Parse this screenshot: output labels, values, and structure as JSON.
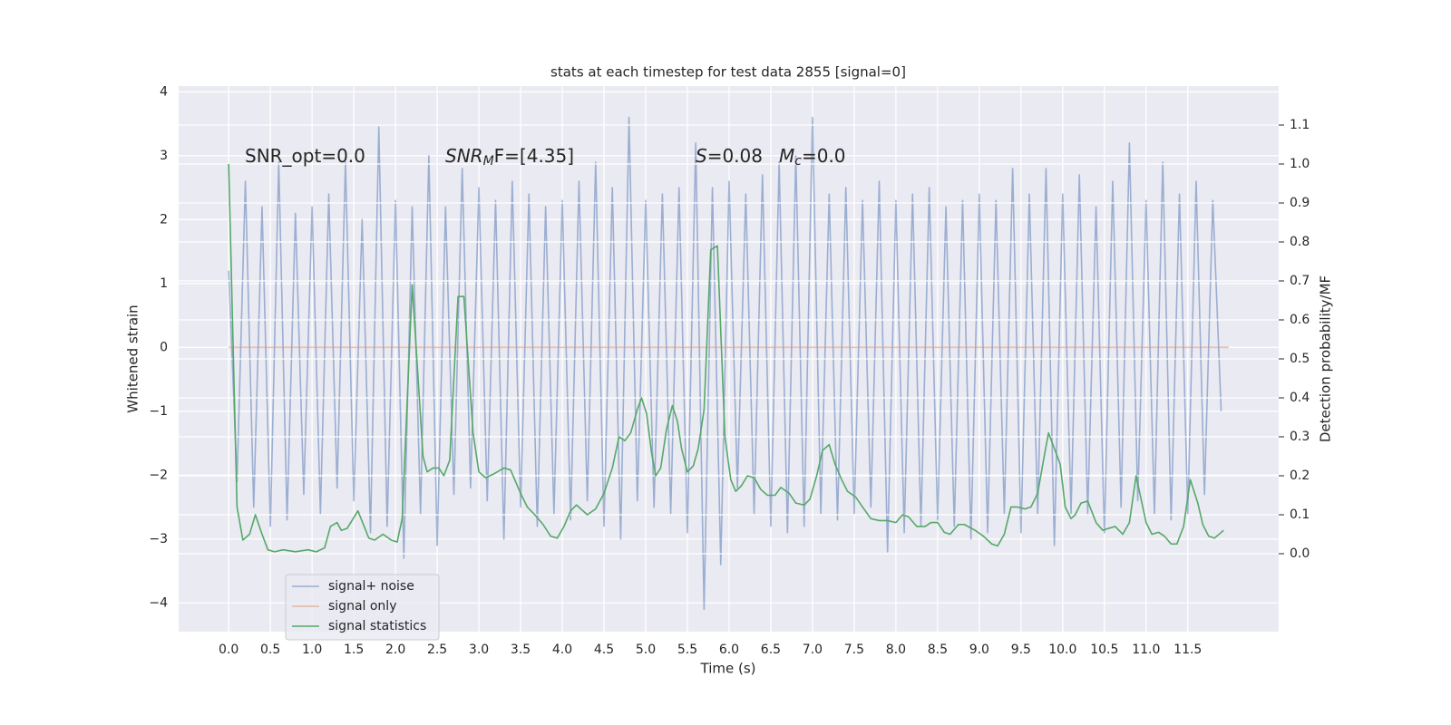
{
  "chart_data": {
    "type": "line",
    "title": "stats at each timestep for test data 2855 [signal=0]",
    "xlabel": "Time (s)",
    "ylabel": "Whitened strain",
    "y2label": "Detection probability/MF",
    "annotations": [
      {
        "text": "SNR_opt=0.0"
      },
      {
        "text": "SNR",
        "sub": "M",
        "after": "F=[4.35]",
        "italic": true
      },
      {
        "text": "S",
        "after": "=0.08",
        "italic": true
      },
      {
        "text": "M",
        "sub": "c",
        "after": "=0.0",
        "italic": true
      }
    ],
    "xlim": [
      -0.6,
      12.59
    ],
    "ylim": [
      -4.45,
      4.09
    ],
    "y2lim": [
      -0.2,
      1.2
    ],
    "xticks": [
      {
        "value": 0,
        "label": "0.0"
      },
      0.5,
      {
        "value": 1,
        "label": "1.0"
      },
      1.5,
      {
        "value": 2,
        "label": "2.0"
      },
      2.5,
      {
        "value": 3,
        "label": "3.0"
      },
      3.5,
      {
        "value": 4,
        "label": "4.0"
      },
      4.5,
      {
        "value": 5,
        "label": "5.0"
      },
      5.5,
      {
        "value": 6,
        "label": "6.0"
      },
      6.5,
      {
        "value": 7,
        "label": "7.0"
      },
      7.5,
      {
        "value": 8,
        "label": "8.0"
      },
      8.5,
      {
        "value": 9,
        "label": "9.0"
      },
      9.5,
      {
        "value": 10,
        "label": "10.0"
      },
      10.5,
      {
        "value": 11,
        "label": "11.0"
      },
      11.5
    ],
    "yticks": [
      {
        "value": -4,
        "label": "−4"
      },
      {
        "value": -3,
        "label": "−3"
      },
      {
        "value": -2,
        "label": "−2"
      },
      {
        "value": -1,
        "label": "−1"
      },
      0,
      1,
      2,
      3,
      4
    ],
    "y2ticks": [
      {
        "value": 0,
        "label": "0.0"
      },
      0.1,
      0.2,
      0.3,
      0.4,
      0.5,
      0.6,
      0.7,
      0.8,
      0.9,
      {
        "value": 1,
        "label": "1.0"
      },
      1.1
    ],
    "grid": true,
    "background": "#eaeaf2",
    "legend": "lower left",
    "series": [
      {
        "name": "signal+ noise",
        "color": "#4c72b0",
        "opacity": 0.5,
        "x": [
          0,
          0.1,
          0.2,
          0.3,
          0.4,
          0.5,
          0.6,
          0.7,
          0.8,
          0.9,
          1,
          1.1,
          1.2,
          1.3,
          1.4,
          1.5,
          1.6,
          1.7,
          1.8,
          1.9,
          2,
          2.1,
          2.2,
          2.3,
          2.4,
          2.5,
          2.6,
          2.7,
          2.8,
          2.9,
          3,
          3.1,
          3.2,
          3.3,
          3.4,
          3.5,
          3.6,
          3.7,
          3.8,
          3.9,
          4,
          4.1,
          4.2,
          4.3,
          4.4,
          4.5,
          4.6,
          4.7,
          4.8,
          4.9,
          5,
          5.1,
          5.2,
          5.3,
          5.4,
          5.5,
          5.6,
          5.7,
          5.8,
          5.9,
          6,
          6.1,
          6.2,
          6.3,
          6.4,
          6.5,
          6.6,
          6.7,
          6.8,
          6.9,
          7,
          7.1,
          7.2,
          7.3,
          7.4,
          7.5,
          7.6,
          7.7,
          7.8,
          7.9,
          8,
          8.1,
          8.2,
          8.3,
          8.4,
          8.5,
          8.6,
          8.7,
          8.8,
          8.9,
          9,
          9.1,
          9.2,
          9.3,
          9.4,
          9.5,
          9.6,
          9.7,
          9.8,
          9.9,
          10,
          10.1,
          10.2,
          10.3,
          10.4,
          10.5,
          10.6,
          10.7,
          10.8,
          10.9,
          11,
          11.1,
          11.2,
          11.3,
          11.4,
          11.5,
          11.6,
          11.7,
          11.8,
          11.9
        ],
        "values": [
          1.2,
          -2.1,
          2.6,
          -2.5,
          2.2,
          -2.8,
          2.9,
          -2.7,
          2.1,
          -2.3,
          2.2,
          -2.6,
          2.4,
          -2.2,
          2.9,
          -2.4,
          2.0,
          -2.9,
          3.45,
          -2.8,
          2.3,
          -3.3,
          2.2,
          -2.6,
          3.0,
          -3.1,
          2.2,
          -2.3,
          2.8,
          -2.2,
          2.5,
          -2.4,
          2.3,
          -3.0,
          2.6,
          -2.5,
          2.4,
          -2.8,
          2.2,
          -2.6,
          2.3,
          -2.7,
          2.6,
          -2.4,
          2.9,
          -2.8,
          2.5,
          -3.0,
          3.6,
          -2.4,
          2.3,
          -2.5,
          2.4,
          -2.6,
          2.5,
          -2.9,
          3.2,
          -4.1,
          2.5,
          -3.4,
          2.6,
          -2.2,
          2.4,
          -2.6,
          2.7,
          -2.8,
          2.9,
          -2.9,
          3.0,
          -2.8,
          3.6,
          -2.6,
          2.4,
          -2.7,
          2.5,
          -2.6,
          2.3,
          -2.5,
          2.6,
          -3.2,
          2.3,
          -2.9,
          2.4,
          -2.8,
          2.5,
          -2.7,
          2.2,
          -2.8,
          2.3,
          -3.0,
          2.4,
          -2.9,
          2.3,
          -2.6,
          2.8,
          -2.9,
          2.4,
          -2.6,
          2.8,
          -3.1,
          2.4,
          -2.6,
          2.7,
          -2.6,
          2.2,
          -2.9,
          2.6,
          -2.5,
          3.2,
          -2.4,
          2.3,
          -2.6,
          2.9,
          -2.7,
          2.4,
          -2.6,
          2.6,
          -2.3,
          2.3,
          -1.0
        ]
      },
      {
        "name": "signal only",
        "color": "#dd8452",
        "opacity": 0.5,
        "x": [
          0,
          11.99
        ],
        "values": [
          0,
          0
        ]
      },
      {
        "name": "signal statistics",
        "color": "#55a868",
        "opacity": 1,
        "axis": "y2",
        "x": [
          0,
          0.1,
          0.17,
          0.25,
          0.32,
          0.4,
          0.47,
          0.55,
          0.65,
          0.8,
          0.95,
          1.05,
          1.15,
          1.22,
          1.3,
          1.35,
          1.42,
          1.55,
          1.68,
          1.75,
          1.85,
          1.95,
          2.02,
          2.08,
          2.2,
          2.33,
          2.38,
          2.45,
          2.52,
          2.58,
          2.65,
          2.75,
          2.82,
          2.93,
          3,
          3.08,
          3.18,
          3.3,
          3.38,
          3.5,
          3.58,
          3.67,
          3.77,
          3.86,
          3.94,
          4.02,
          4.1,
          4.17,
          4.3,
          4.4,
          4.5,
          4.6,
          4.68,
          4.75,
          4.82,
          4.9,
          4.95,
          5.01,
          5.07,
          5.12,
          5.18,
          5.25,
          5.32,
          5.38,
          5.43,
          5.5,
          5.57,
          5.63,
          5.7,
          5.78,
          5.86,
          5.95,
          6.02,
          6.08,
          6.15,
          6.22,
          6.3,
          6.38,
          6.46,
          6.55,
          6.62,
          6.72,
          6.8,
          6.9,
          6.97,
          7.05,
          7.12,
          7.2,
          7.27,
          7.35,
          7.42,
          7.52,
          7.6,
          7.7,
          7.8,
          7.9,
          8,
          8.08,
          8.15,
          8.25,
          8.35,
          8.42,
          8.5,
          8.58,
          8.65,
          8.75,
          8.82,
          8.95,
          9.05,
          9.15,
          9.22,
          9.3,
          9.38,
          9.45,
          9.55,
          9.62,
          9.7,
          9.77,
          9.83,
          9.9,
          9.97,
          10.03,
          10.1,
          10.15,
          10.22,
          10.3,
          10.4,
          10.48,
          10.55,
          10.63,
          10.72,
          10.8,
          10.88,
          10.93,
          11,
          11.07,
          11.15,
          11.22,
          11.3,
          11.37,
          11.45,
          11.53,
          11.62,
          11.68,
          11.75,
          11.82,
          11.93
        ],
        "values": [
          1,
          0.12,
          0.035,
          0.05,
          0.1,
          0.05,
          0.01,
          0.005,
          0.01,
          0.005,
          0.01,
          0.005,
          0.015,
          0.07,
          0.08,
          0.06,
          0.065,
          0.11,
          0.04,
          0.035,
          0.05,
          0.035,
          0.03,
          0.09,
          0.69,
          0.25,
          0.21,
          0.22,
          0.22,
          0.2,
          0.24,
          0.66,
          0.66,
          0.31,
          0.21,
          0.195,
          0.205,
          0.22,
          0.215,
          0.155,
          0.12,
          0.1,
          0.075,
          0.045,
          0.04,
          0.07,
          0.11,
          0.125,
          0.1,
          0.115,
          0.155,
          0.22,
          0.3,
          0.29,
          0.31,
          0.37,
          0.4,
          0.36,
          0.26,
          0.2,
          0.22,
          0.32,
          0.38,
          0.34,
          0.27,
          0.21,
          0.225,
          0.27,
          0.37,
          0.78,
          0.79,
          0.3,
          0.19,
          0.16,
          0.175,
          0.2,
          0.195,
          0.165,
          0.15,
          0.15,
          0.17,
          0.155,
          0.13,
          0.125,
          0.14,
          0.2,
          0.265,
          0.28,
          0.23,
          0.19,
          0.16,
          0.145,
          0.12,
          0.09,
          0.085,
          0.085,
          0.08,
          0.1,
          0.095,
          0.07,
          0.07,
          0.08,
          0.08,
          0.055,
          0.05,
          0.075,
          0.075,
          0.06,
          0.045,
          0.025,
          0.02,
          0.05,
          0.12,
          0.12,
          0.115,
          0.12,
          0.155,
          0.24,
          0.31,
          0.27,
          0.23,
          0.12,
          0.09,
          0.1,
          0.13,
          0.135,
          0.08,
          0.06,
          0.065,
          0.07,
          0.05,
          0.08,
          0.2,
          0.15,
          0.08,
          0.05,
          0.055,
          0.045,
          0.025,
          0.025,
          0.07,
          0.19,
          0.13,
          0.075,
          0.045,
          0.04,
          0.06
        ]
      }
    ]
  }
}
